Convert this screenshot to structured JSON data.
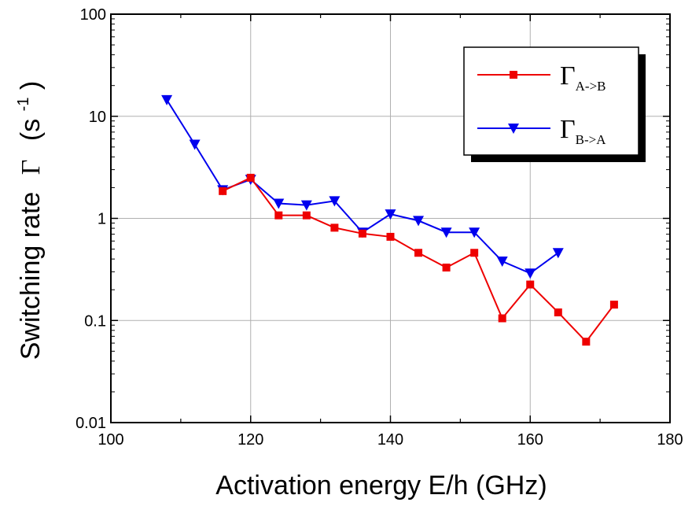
{
  "chart_data": {
    "type": "line",
    "xlabel": "Activation energy  E/h  (GHz)",
    "ylabel": {
      "text": "Switching rate",
      "symbol": "Γ",
      "unit_open": "(s",
      "unit_exp": "-1",
      "unit_close": ")"
    },
    "xlim": [
      100,
      180
    ],
    "ylim": [
      0.01,
      100
    ],
    "yscale": "log",
    "grid": true,
    "xticks": [
      100,
      120,
      140,
      160,
      180
    ],
    "yticks": [
      {
        "value": 0.01,
        "label": "0.01"
      },
      {
        "value": 0.1,
        "label": "0.1"
      },
      {
        "value": 1,
        "label": "1"
      },
      {
        "value": 10,
        "label": "10"
      },
      {
        "value": 100,
        "label": "100"
      }
    ],
    "legend_position": "top-right",
    "series": [
      {
        "symbol": "Γ",
        "subscript": "A->B",
        "color": "#ee0000",
        "marker": "square",
        "x": [
          116,
          120,
          124,
          128,
          132,
          136,
          140,
          144,
          148,
          152,
          156,
          160,
          164,
          168,
          172
        ],
        "y": [
          1.85,
          2.5,
          1.07,
          1.07,
          0.81,
          0.71,
          0.66,
          0.46,
          0.33,
          0.46,
          0.105,
          0.225,
          0.12,
          0.062,
          0.143
        ]
      },
      {
        "symbol": "Γ",
        "subscript": "B->A",
        "color": "#0000ee",
        "marker": "triangle-down",
        "x": [
          108,
          112,
          116,
          120,
          124,
          128,
          132,
          136,
          140,
          144,
          148,
          152,
          156,
          160,
          164
        ],
        "y": [
          14.5,
          5.3,
          1.9,
          2.4,
          1.4,
          1.35,
          1.48,
          0.73,
          1.1,
          0.95,
          0.73,
          0.73,
          0.38,
          0.29,
          0.46
        ]
      }
    ]
  }
}
